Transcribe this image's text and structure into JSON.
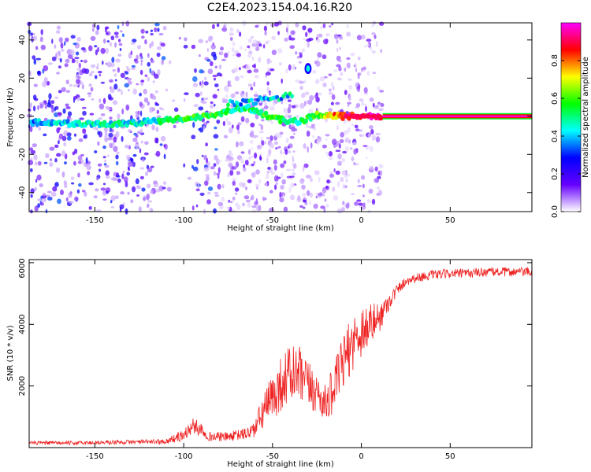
{
  "title": "C2E4.2023.154.04.16.R20",
  "chart_data": [
    {
      "type": "heatmap",
      "xlabel": "Height of straight line (km)",
      "ylabel": "Frequency (Hz)",
      "xlim": [
        -187,
        96
      ],
      "ylim": [
        -50,
        49
      ],
      "xticks": [
        -150,
        -100,
        -50,
        0,
        50
      ],
      "yticks": [
        -40,
        -20,
        0,
        20,
        40
      ],
      "colorbar": {
        "label": "Normalized spectral amplitude",
        "range": [
          0,
          1
        ],
        "ticks": [
          0.0,
          0.2,
          0.4,
          0.6,
          0.8
        ],
        "tick_labels": [
          "0.0",
          "0.2",
          "0.4",
          "0.6",
          "0.8"
        ],
        "colors": [
          "#ffffff",
          "#6600ff",
          "#0000ff",
          "#00ffff",
          "#00ff00",
          "#ffff00",
          "#ff0000",
          "#ff00ff"
        ]
      },
      "ridge": [
        {
          "x": -185,
          "f": -3,
          "a": 0.35
        },
        {
          "x": -160,
          "f": -4,
          "a": 0.45
        },
        {
          "x": -140,
          "f": -4,
          "a": 0.45
        },
        {
          "x": -120,
          "f": -3,
          "a": 0.45
        },
        {
          "x": -100,
          "f": -1,
          "a": 0.55
        },
        {
          "x": -85,
          "f": 0,
          "a": 0.55
        },
        {
          "x": -75,
          "f": 3,
          "a": 0.5
        },
        {
          "x": -65,
          "f": 5,
          "a": 0.5
        },
        {
          "x": -55,
          "f": 1,
          "a": 0.55
        },
        {
          "x": -45,
          "f": -2,
          "a": 0.55
        },
        {
          "x": -35,
          "f": -3,
          "a": 0.5
        },
        {
          "x": -25,
          "f": 1,
          "a": 0.6
        },
        {
          "x": -10,
          "f": 0,
          "a": 0.85
        },
        {
          "x": 10,
          "f": 0,
          "a": 0.95
        },
        {
          "x": 50,
          "f": 0,
          "a": 1.0
        },
        {
          "x": 95,
          "f": 0,
          "a": 1.0
        }
      ],
      "upper_branch": [
        {
          "x": -75,
          "f": 7,
          "a": 0.4
        },
        {
          "x": -60,
          "f": 8,
          "a": 0.4
        },
        {
          "x": -45,
          "f": 10,
          "a": 0.4
        },
        {
          "x": -40,
          "f": 12,
          "a": 0.4
        }
      ],
      "isolated_blob": {
        "x": -30,
        "f": 25,
        "a": 0.45
      }
    },
    {
      "type": "line",
      "xlabel": "Height of straight line (km)",
      "ylabel": "SNR (10 * v/v)",
      "xlim": [
        -187,
        96
      ],
      "ylim": [
        0,
        6100
      ],
      "xticks": [
        -150,
        -100,
        -50,
        0,
        50
      ],
      "yticks": [
        2000,
        4000,
        6000
      ],
      "series": [
        {
          "color": "#ee2222",
          "x": [
            -187,
            -160,
            -130,
            -110,
            -100,
            -95,
            -90,
            -85,
            -75,
            -65,
            -60,
            -55,
            -50,
            -45,
            -40,
            -35,
            -30,
            -25,
            -20,
            -15,
            -10,
            -5,
            0,
            5,
            10,
            15,
            20,
            25,
            30,
            40,
            50,
            60,
            70,
            80,
            90,
            96
          ],
          "values": [
            150,
            150,
            180,
            200,
            400,
            700,
            600,
            350,
            350,
            450,
            600,
            1200,
            1600,
            2100,
            2400,
            2300,
            2000,
            1800,
            1400,
            2000,
            2800,
            3400,
            3800,
            4000,
            4200,
            4700,
            5100,
            5400,
            5500,
            5600,
            5650,
            5650,
            5700,
            5700,
            5700,
            5700
          ],
          "noise_amplitude": [
            60,
            60,
            70,
            80,
            200,
            250,
            250,
            150,
            150,
            200,
            300,
            600,
            800,
            900,
            1000,
            1000,
            800,
            700,
            600,
            800,
            900,
            900,
            900,
            700,
            500,
            300,
            200,
            150,
            150,
            150,
            150,
            150,
            150,
            150,
            150,
            150
          ]
        }
      ]
    }
  ]
}
